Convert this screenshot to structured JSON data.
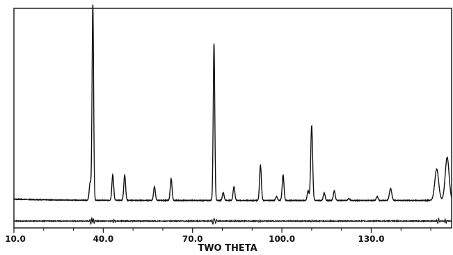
{
  "chart_data": {
    "type": "line",
    "title": "",
    "xlabel": "TWO THETA",
    "ylabel": "",
    "x_ticks": [
      "10.0",
      "40.0",
      "70.0",
      "100.0",
      "130.0"
    ],
    "x_tick_values": [
      10,
      40,
      70,
      100,
      130
    ],
    "xlim": [
      10,
      157
    ],
    "ylim": [
      -0.12,
      1.0
    ],
    "grid": false,
    "legend": "none",
    "series": [
      {
        "role": "pattern",
        "baseline": 0.02,
        "peaks": [
          {
            "x": 35.6,
            "h": 0.09,
            "w": 0.3
          },
          {
            "x": 36.5,
            "h": 1.0,
            "w": 0.26
          },
          {
            "x": 43.2,
            "h": 0.13,
            "w": 0.3
          },
          {
            "x": 47.2,
            "h": 0.13,
            "w": 0.3
          },
          {
            "x": 57.2,
            "h": 0.07,
            "w": 0.3
          },
          {
            "x": 62.8,
            "h": 0.11,
            "w": 0.3
          },
          {
            "x": 77.2,
            "h": 0.8,
            "w": 0.26
          },
          {
            "x": 80.3,
            "h": 0.04,
            "w": 0.3
          },
          {
            "x": 83.9,
            "h": 0.07,
            "w": 0.3
          },
          {
            "x": 92.8,
            "h": 0.18,
            "w": 0.3
          },
          {
            "x": 98.2,
            "h": 0.02,
            "w": 0.3
          },
          {
            "x": 100.4,
            "h": 0.13,
            "w": 0.3
          },
          {
            "x": 108.8,
            "h": 0.05,
            "w": 0.3
          },
          {
            "x": 110.0,
            "h": 0.38,
            "w": 0.32
          },
          {
            "x": 114.2,
            "h": 0.04,
            "w": 0.3
          },
          {
            "x": 117.6,
            "h": 0.05,
            "w": 0.3
          },
          {
            "x": 122.5,
            "h": 0.01,
            "w": 0.3
          },
          {
            "x": 132.0,
            "h": 0.02,
            "w": 0.3
          },
          {
            "x": 136.5,
            "h": 0.06,
            "w": 0.4
          },
          {
            "x": 152.0,
            "h": 0.16,
            "w": 0.65
          },
          {
            "x": 155.5,
            "h": 0.22,
            "w": 0.65
          }
        ]
      },
      {
        "role": "difference",
        "baseline": -0.085,
        "features": [
          {
            "x": 36.0,
            "amp": 0.02
          },
          {
            "x": 36.8,
            "amp": -0.015
          },
          {
            "x": 43.5,
            "amp": 0.008
          },
          {
            "x": 77.0,
            "amp": 0.02
          },
          {
            "x": 77.6,
            "amp": -0.015
          },
          {
            "x": 92.5,
            "amp": 0.005
          },
          {
            "x": 110.0,
            "amp": 0.006
          },
          {
            "x": 152.5,
            "amp": 0.015
          },
          {
            "x": 155.0,
            "amp": -0.012
          }
        ]
      }
    ]
  }
}
